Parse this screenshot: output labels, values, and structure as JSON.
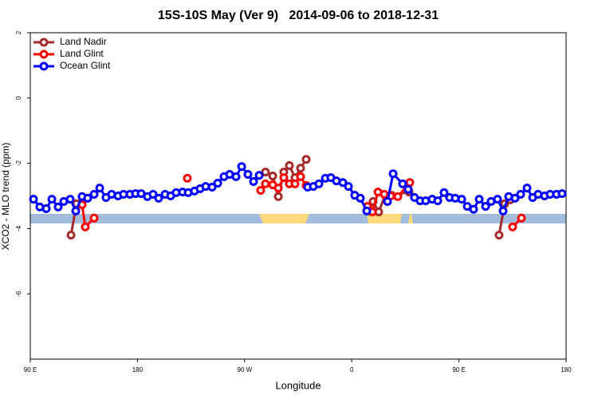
{
  "chart_data": {
    "type": "line",
    "title": "15S-10S May (Ver 9)   2014-09-06 to 2018-12-31",
    "xlabel": "Longitude",
    "ylabel": "XCO2 - MLO trend (ppm)",
    "xlim": [
      90,
      540
    ],
    "xticks": [
      {
        "value": 90,
        "label": "90 E"
      },
      {
        "value": 180,
        "label": "180"
      },
      {
        "value": 270,
        "label": "90 W"
      },
      {
        "value": 360,
        "label": "0"
      },
      {
        "value": 450,
        "label": "90 E"
      },
      {
        "value": 540,
        "label": "180"
      }
    ],
    "ylim": [
      -8,
      2
    ],
    "yticks": [
      -6,
      -4,
      -2,
      0,
      2
    ],
    "legend": "top-left",
    "series": [
      {
        "name": "Land Nadir",
        "color": "#a52a2a",
        "x": [
          124.2,
          128.8,
          134.2,
          null,
          287.5,
          293.6,
          298.3,
          302.9,
          307.6,
          312.3,
          317.0,
          321.7,
          null,
          374.6,
          377.9,
          382.6,
          388.0,
          393.3,
          408.1,
          null,
          483.7,
          488.4,
          493.1
        ],
        "values": [
          -4.2,
          -3.24,
          -3.12,
          null,
          -2.27,
          -2.39,
          -3.02,
          -2.27,
          -2.07,
          -2.44,
          -2.15,
          -1.88,
          null,
          -3.46,
          -3.17,
          -3.49,
          -2.98,
          -2.98,
          -2.88,
          null,
          -4.2,
          -3.24,
          -3.12
        ]
      },
      {
        "name": "Land Glint",
        "color": "#ff0000",
        "x": [
          133.5,
          136.2,
          143.6,
          null,
          221.9,
          null,
          283.5,
          287.5,
          293.6,
          298.3,
          302.9,
          307.6,
          312.3,
          317.0,
          321.7,
          null,
          373.2,
          377.3,
          382.0,
          387.3,
          392.7,
          398.7,
          408.7,
          null,
          495.1,
          502.5
        ],
        "values": [
          -3.27,
          -3.95,
          -3.68,
          null,
          -2.46,
          null,
          -2.83,
          -2.63,
          -2.66,
          -2.76,
          -2.44,
          -2.63,
          -2.63,
          -2.41,
          -2.68,
          null,
          -3.32,
          -3.49,
          -2.88,
          -2.95,
          -3.0,
          -3.02,
          -2.59,
          null,
          -3.95,
          -3.68
        ]
      },
      {
        "name": "Ocean Glint",
        "color": "#0000ff",
        "x": [
          92.7,
          98.0,
          103.4,
          108.1,
          113.4,
          118.1,
          123.5,
          128.2,
          133.5,
          138.2,
          143.6,
          148.3,
          153.6,
          158.3,
          163.7,
          168.3,
          173.7,
          178.4,
          183.1,
          188.4,
          193.1,
          197.8,
          203.2,
          207.9,
          212.5,
          217.9,
          222.6,
          227.9,
          232.6,
          237.3,
          242.7,
          247.4,
          252.7,
          257.4,
          262.8,
          267.5,
          272.8,
          277.5,
          282.2,
          null,
          323.0,
          327.7,
          332.4,
          337.8,
          342.4,
          347.1,
          352.5,
          357.2,
          362.5,
          367.2,
          372.6,
          null,
          390.0,
          394.7,
          402.7,
          407.4,
          412.7,
          417.4,
          422.1,
          427.5,
          432.2,
          437.5,
          442.2,
          446.9,
          452.3,
          457.0,
          462.3,
          467.0,
          472.4,
          477.0,
          482.4,
          487.1,
          491.8,
          497.1,
          501.8,
          507.2,
          511.9,
          516.5,
          521.9,
          526.6,
          532.0,
          536.6
        ],
        "values": [
          -3.1,
          -3.34,
          -3.39,
          -3.1,
          -3.34,
          -3.17,
          -3.1,
          -3.46,
          -3.02,
          -3.07,
          -2.95,
          -2.76,
          -3.05,
          -2.95,
          -3.0,
          -2.95,
          -2.95,
          -2.93,
          -2.93,
          -3.02,
          -2.95,
          -3.07,
          -2.95,
          -3.0,
          -2.9,
          -2.88,
          -2.9,
          -2.85,
          -2.78,
          -2.71,
          -2.73,
          -2.61,
          -2.41,
          -2.34,
          -2.41,
          -2.1,
          -2.34,
          -2.56,
          -2.37,
          null,
          -2.73,
          -2.71,
          -2.63,
          -2.46,
          -2.44,
          -2.54,
          -2.59,
          -2.71,
          -2.98,
          -3.07,
          -3.46,
          null,
          -3.17,
          -2.32,
          -2.63,
          -2.8,
          -3.05,
          -3.15,
          -3.15,
          -3.1,
          -3.15,
          -2.9,
          -3.05,
          -3.07,
          -3.1,
          -3.32,
          -3.41,
          -3.1,
          -3.32,
          -3.17,
          -3.1,
          -3.46,
          -3.02,
          -3.07,
          -2.95,
          -2.76,
          -3.05,
          -2.95,
          -3.0,
          -2.95,
          -2.95,
          -2.93
        ]
      }
    ]
  }
}
